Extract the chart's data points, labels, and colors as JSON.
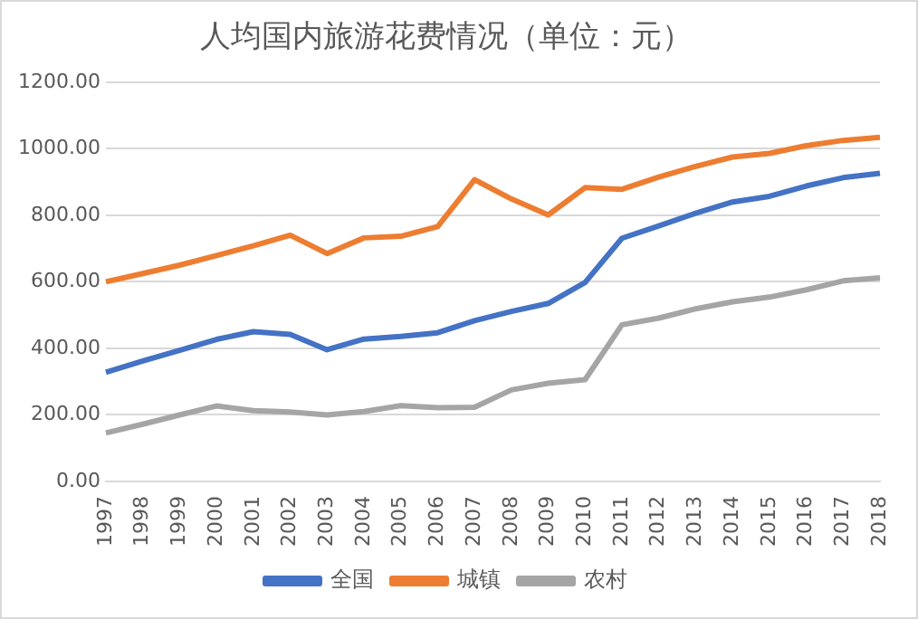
{
  "chart_data": {
    "type": "line",
    "title": "人均国内旅游花费情况（单位：元）",
    "categories": [
      "1997",
      "1998",
      "1999",
      "2000",
      "2001",
      "2002",
      "2003",
      "2004",
      "2005",
      "2006",
      "2007",
      "2008",
      "2009",
      "2010",
      "2011",
      "2012",
      "2013",
      "2014",
      "2015",
      "2016",
      "2017",
      "2018"
    ],
    "series": [
      {
        "name": "全国",
        "color": "#4472c4",
        "values": [
          328,
          362,
          394,
          427,
          450,
          442,
          396,
          428,
          436,
          447,
          483,
          511,
          535,
          598,
          731,
          768,
          806,
          840,
          857,
          888,
          913,
          926
        ]
      },
      {
        "name": "城镇",
        "color": "#ed7d31",
        "values": [
          600,
          625,
          650,
          679,
          708,
          740,
          685,
          732,
          737,
          766,
          907,
          849,
          801,
          883,
          878,
          915,
          947,
          975,
          986,
          1009,
          1025,
          1034
        ]
      },
      {
        "name": "农村",
        "color": "#a5a5a5",
        "values": [
          146,
          172,
          200,
          227,
          213,
          209,
          200,
          210,
          228,
          222,
          223,
          275,
          295,
          306,
          471,
          491,
          519,
          540,
          554,
          576,
          603,
          612
        ]
      }
    ],
    "ylim": [
      0,
      1200
    ],
    "yticks": [
      {
        "value": 0,
        "label": "0.00"
      },
      {
        "value": 200,
        "label": "200.00"
      },
      {
        "value": 400,
        "label": "400.00"
      },
      {
        "value": 600,
        "label": "600.00"
      },
      {
        "value": 800,
        "label": "800.00"
      },
      {
        "value": 1000,
        "label": "1000.00"
      },
      {
        "value": 1200,
        "label": "1200.00"
      }
    ],
    "grid": "y",
    "legend": "bottom",
    "marker": "none",
    "line_style": "solid"
  }
}
